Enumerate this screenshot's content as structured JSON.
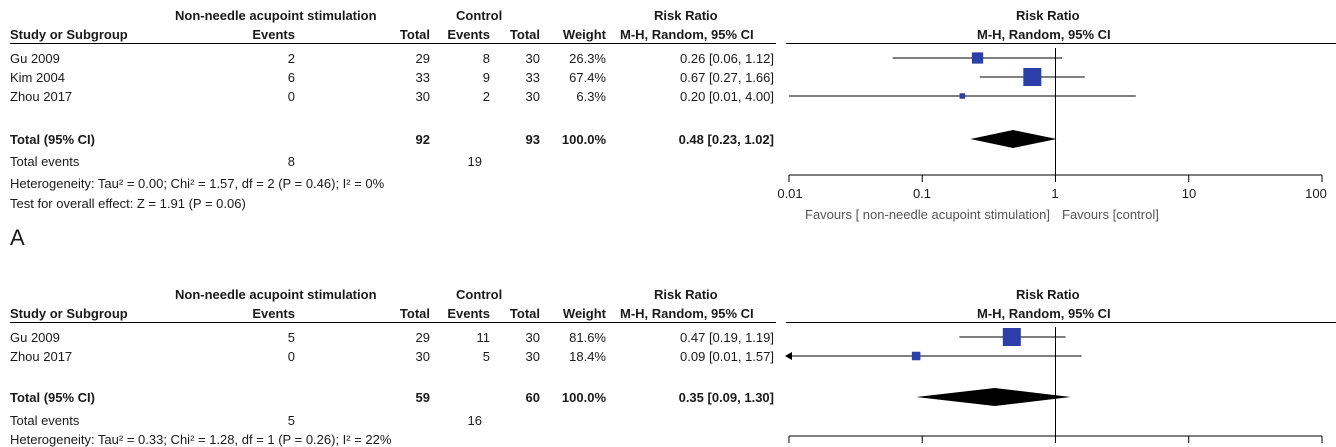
{
  "header": {
    "group_exp": "Non-needle acupoint stimulation",
    "group_ctl": "Control",
    "rr_heading": "Risk Ratio",
    "col_study": "Study or Subgroup",
    "col_events": "Events",
    "col_total": "Total",
    "col_events2": "Events",
    "col_total2": "Total",
    "col_weight": "Weight",
    "col_method": "M-H, Random, 95% CI",
    "plot_heading": "Risk Ratio",
    "plot_method": "M-H, Random, 95% CI"
  },
  "chart_data": [
    {
      "type": "forest",
      "panel_label": "A",
      "studies": [
        {
          "name": "Gu 2009",
          "exp_events": "2",
          "exp_total": "29",
          "ctl_events": "8",
          "ctl_total": "30",
          "weight": "26.3%",
          "ci_text": "0.26 [0.06, 1.12]",
          "rr": 0.26,
          "lo": 0.06,
          "hi": 1.12,
          "w": 26.3
        },
        {
          "name": "Kim 2004",
          "exp_events": "6",
          "exp_total": "33",
          "ctl_events": "9",
          "ctl_total": "33",
          "weight": "67.4%",
          "ci_text": "0.67 [0.27, 1.66]",
          "rr": 0.67,
          "lo": 0.27,
          "hi": 1.66,
          "w": 67.4
        },
        {
          "name": "Zhou 2017",
          "exp_events": "0",
          "exp_total": "30",
          "ctl_events": "2",
          "ctl_total": "30",
          "weight": "6.3%",
          "ci_text": "0.20 [0.01, 4.00]",
          "rr": 0.2,
          "lo": 0.01,
          "hi": 4.0,
          "w": 6.3
        }
      ],
      "total": {
        "label": "Total (95% CI)",
        "exp_total": "92",
        "ctl_total": "93",
        "weight": "100.0%",
        "ci_text": "0.48 [0.23, 1.02]",
        "rr": 0.48,
        "lo": 0.23,
        "hi": 1.02
      },
      "events": {
        "label": "Total events",
        "exp": "8",
        "ctl": "19"
      },
      "heterogeneity": "Heterogeneity: Tau² = 0.00; Chi² = 1.57, df = 2 (P = 0.46); I² = 0%",
      "overall": "Test for overall effect: Z = 1.91 (P = 0.06)",
      "xscale": "log",
      "xlim": [
        0.01,
        100
      ],
      "ticks": [
        "0.01",
        "0.1",
        "1",
        "10",
        "100"
      ],
      "favours_left": "Favours [ non-needle acupoint stimulation]",
      "favours_right": "Favours [control]"
    },
    {
      "type": "forest",
      "studies": [
        {
          "name": "Gu 2009",
          "exp_events": "5",
          "exp_total": "29",
          "ctl_events": "11",
          "ctl_total": "30",
          "weight": "81.6%",
          "ci_text": "0.47 [0.19, 1.19]",
          "rr": 0.47,
          "lo": 0.19,
          "hi": 1.19,
          "w": 81.6
        },
        {
          "name": "Zhou 2017",
          "exp_events": "0",
          "exp_total": "30",
          "ctl_events": "5",
          "ctl_total": "30",
          "weight": "18.4%",
          "ci_text": "0.09 [0.01, 1.57]",
          "rr": 0.09,
          "lo": 0.01,
          "hi": 1.57,
          "w": 18.4,
          "arrow_left": true
        }
      ],
      "total": {
        "label": "Total (95% CI)",
        "exp_total": "59",
        "ctl_total": "60",
        "weight": "100.0%",
        "ci_text": "0.35 [0.09, 1.30]",
        "rr": 0.35,
        "lo": 0.09,
        "hi": 1.3
      },
      "events": {
        "label": "Total events",
        "exp": "5",
        "ctl": "16"
      },
      "heterogeneity": "Heterogeneity: Tau² = 0.33; Chi² = 1.28, df = 1 (P = 0.26); I² = 22%",
      "xscale": "log",
      "xlim": [
        0.01,
        100
      ]
    }
  ],
  "colors": {
    "marker": "#2a3fa8",
    "line": "#000000",
    "favours": "#555555"
  }
}
